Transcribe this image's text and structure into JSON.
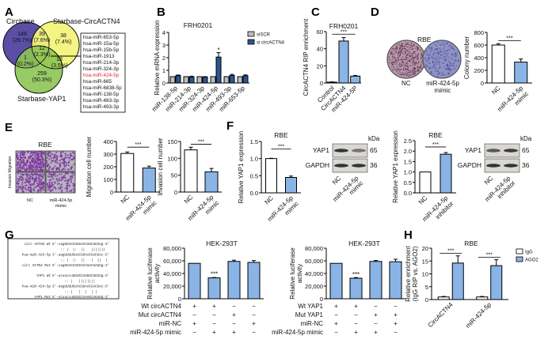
{
  "panels": [
    "A",
    "B",
    "C",
    "D",
    "E",
    "F",
    "G",
    "H"
  ],
  "colors": {
    "purple": "#5b4fa5",
    "yellow": "#f3f37c",
    "green": "#8dc454",
    "blue": "#8ab4e6",
    "navy": "#2b5592",
    "gray": "#bdbdbd",
    "red": "#e8202a"
  },
  "venn": {
    "sets": [
      "Circbase",
      "Starbase-CircACTN4",
      "Starbase-YAP1"
    ],
    "regions": [
      {
        "count": "148",
        "pct": "(28.7%)"
      },
      {
        "count": "39",
        "pct": "(7.6%)"
      },
      {
        "count": "38",
        "pct": "(7.4%)"
      },
      {
        "count": "12",
        "pct": "(2.3%)"
      },
      {
        "count": "1",
        "pct": "(0.2%)"
      },
      {
        "count": "18",
        "pct": "(3.5%)"
      },
      {
        "count": "259",
        "pct": "(50.3%)"
      }
    ],
    "mirna_list": [
      "hsa-miR-653-5p",
      "hsa-miR-15a-5p",
      "hsa-miR-15b-5p",
      "hsa-miR-1913",
      "hsa-miR-214-3p",
      "hsa-miR-324-3p",
      "hsa-miR-424-5p",
      "hsa-miR-665",
      "hsa-miR-6838-5p",
      "hsa-miR-138-5p",
      "hsa-miR-483-3p",
      "hsa-miR-493-3p"
    ],
    "highlight_index": 6
  },
  "colony": {
    "title": "RBE",
    "labels": [
      "NC",
      "miR-424-5p",
      "mimic"
    ]
  },
  "transwell": {
    "title": "RBE",
    "row_label": "Invasion Migration",
    "labels": [
      "NC",
      "miR-424-5p",
      "mimic"
    ]
  },
  "western": [
    {
      "rows": [
        "YAP1",
        "GAPDH"
      ],
      "kda_label": "kDa",
      "kda": [
        "65",
        "36"
      ],
      "lanes": [
        [
          "NC"
        ],
        [
          "miR-424-5p",
          "mimic"
        ]
      ]
    },
    {
      "rows": [
        "YAP1",
        "GAPDH"
      ],
      "kda_label": "kDa",
      "kda": [
        "65",
        "36"
      ],
      "lanes": [
        [
          "NC"
        ],
        [
          "miR-424-5p",
          "inhibitor"
        ]
      ]
    }
  ],
  "sequences": [
    {
      "label": "circ ACTN4 Wt",
      "seq": "5'-cagGGACCGGGACCUGCUGCUg-3'"
    },
    {
      "label": "",
      "seq": "    :: |  |:  ||   |||||||"
    },
    {
      "label": "hsa-miR-424-5p",
      "seq": "3'-aagUUUUGUACUUAACGACGAc-5'"
    },
    {
      "label": "",
      "seq": "    :: |  |:  ||   |  ||  |"
    },
    {
      "label": "circ ACTN4 Mut",
      "seq": "5'-cagGGACCGGGACCUACUAUUg-3'"
    },
    {
      "label": "YAP1 Wt",
      "seq": "5'-ucuuccuUGUCCAUUGCUGCUg-3'"
    },
    {
      "label": "",
      "seq": "      :: |   ||||||||"
    },
    {
      "label": "hsa-miR-424-5p",
      "seq": "3'-aagUUUUGUACUUAACGACGAc-5'"
    },
    {
      "label": "",
      "seq": "      :: |   |  |  | |"
    },
    {
      "label": "YAP1 Mut",
      "seq": "5'-ucuuccuUGUCCAAAGCAGAUg-3'"
    }
  ],
  "chart_data": {
    "B": {
      "type": "bar",
      "title": "FRH0201",
      "ylabel": [
        "Relative mRNA expression"
      ],
      "ylim": [
        0,
        4
      ],
      "yticks": [
        "0",
        "1",
        "2",
        "3",
        "4"
      ],
      "categories": [
        [
          "miR-138-5p"
        ],
        [
          "miR-214-3p"
        ],
        [
          "miR-324-3p"
        ],
        [
          "miR-424-5p"
        ],
        [
          "miR-493-3p"
        ],
        [
          "miR-653-5p"
        ]
      ],
      "series": [
        {
          "name": "siSCR",
          "color": "#bdbdbd",
          "values": [
            0.5,
            0.5,
            0.5,
            0.5,
            0.5,
            0.5
          ],
          "errors": [
            0,
            0,
            0,
            0,
            0,
            0
          ]
        },
        {
          "name": "si circACTN4",
          "color": "#2b5592",
          "values": [
            0.58,
            0.48,
            0.47,
            2.05,
            0.6,
            0.57
          ],
          "errors": [
            0.05,
            0.06,
            0.03,
            0.35,
            0.08,
            0.07
          ]
        }
      ],
      "significance": [
        {
          "over": [
            3,
            1
          ],
          "text": "*",
          "y": 2.55
        }
      ],
      "legend": "top-right"
    },
    "C": {
      "type": "bar",
      "title": "FRH0201",
      "ylabel": [
        "CircACTN4 RIP enrichment"
      ],
      "ylim": [
        0,
        60
      ],
      "yticks": [
        "0",
        "20",
        "40",
        "60"
      ],
      "categories": [
        [
          "Control"
        ],
        [
          "CircACTN4"
        ],
        [
          "miR-424-5P"
        ]
      ],
      "series": [
        {
          "colors": [
            "#bdbdbd",
            "#8ab4e6",
            "#8ab4e6"
          ],
          "values": [
            1,
            49,
            8
          ],
          "errors": [
            0.3,
            4,
            0.8
          ]
        }
      ],
      "significance": [
        {
          "from": 0,
          "to": 2,
          "text": "***",
          "y": 57
        }
      ]
    },
    "D": {
      "type": "bar",
      "ylabel": [
        "Colony number"
      ],
      "ylim": [
        0,
        800
      ],
      "yticks": [
        "0",
        "200",
        "400",
        "600",
        "800"
      ],
      "categories": [
        [
          "NC"
        ],
        [
          "miR-424-5p",
          "mimic"
        ]
      ],
      "series": [
        {
          "colors": [
            "#ffffff",
            "#8ab4e6"
          ],
          "values": [
            600,
            330
          ],
          "errors": [
            20,
            50
          ]
        }
      ],
      "significance": [
        {
          "from": 0,
          "to": 1,
          "text": "***",
          "y": 670
        }
      ]
    },
    "E1": {
      "type": "bar",
      "ylabel": [
        "Migration cell number"
      ],
      "ylim": [
        0,
        400
      ],
      "yticks": [
        "0",
        "100",
        "200",
        "300",
        "400"
      ],
      "categories": [
        [
          "NC"
        ],
        [
          "miR-424-5p",
          "mimic"
        ]
      ],
      "series": [
        {
          "colors": [
            "#ffffff",
            "#8ab4e6"
          ],
          "values": [
            305,
            190
          ],
          "errors": [
            12,
            15
          ]
        }
      ],
      "significance": [
        {
          "from": 0,
          "to": 1,
          "text": "***",
          "y": 355
        }
      ]
    },
    "E2": {
      "type": "bar",
      "ylabel": [
        "Invasion cell number"
      ],
      "ylim": [
        0,
        150
      ],
      "yticks": [
        "0",
        "50",
        "100",
        "150"
      ],
      "categories": [
        [
          "NC"
        ],
        [
          "miR-424-5p",
          "mimic"
        ]
      ],
      "series": [
        {
          "colors": [
            "#ffffff",
            "#8ab4e6"
          ],
          "values": [
            125,
            60
          ],
          "errors": [
            8,
            10
          ]
        }
      ],
      "significance": [
        {
          "from": 0,
          "to": 1,
          "text": "***",
          "y": 142
        }
      ]
    },
    "F1": {
      "type": "bar",
      "title": "RBE",
      "ylabel": [
        "Relative YAP1 expression"
      ],
      "ylim": [
        0,
        1.5
      ],
      "yticks": [
        "0.0",
        "0.5",
        "1.0",
        "1.5"
      ],
      "categories": [
        [
          "NC"
        ],
        [
          "miR-424-5p",
          "mimic"
        ]
      ],
      "series": [
        {
          "colors": [
            "#ffffff",
            "#8ab4e6"
          ],
          "values": [
            1.0,
            0.45
          ],
          "errors": [
            0.01,
            0.04
          ]
        }
      ],
      "significance": [
        {
          "from": 0,
          "to": 1,
          "text": "***",
          "y": 1.28
        }
      ]
    },
    "F2": {
      "type": "bar",
      "title": "RBE",
      "ylabel": [
        "Relative YAP1 expression"
      ],
      "ylim": [
        0,
        2.5
      ],
      "yticks": [
        "0.0",
        "0.5",
        "1.0",
        "1.5",
        "2.0",
        "2.5"
      ],
      "categories": [
        [
          "NC"
        ],
        [
          "miR-424-5p",
          "inhibitor"
        ]
      ],
      "series": [
        {
          "colors": [
            "#ffffff",
            "#8ab4e6"
          ],
          "values": [
            1.0,
            1.85
          ],
          "errors": [
            0,
            0.08
          ]
        }
      ],
      "significance": [
        {
          "from": 0,
          "to": 1,
          "text": "***",
          "y": 2.2
        }
      ]
    },
    "G1": {
      "type": "bar",
      "title": "HEK-293T",
      "ylabel": [
        "Relative luciferase",
        "activity"
      ],
      "ylim": [
        0,
        80000
      ],
      "yticks": [
        "0",
        "20,000",
        "40,000",
        "60,000",
        "80,000"
      ],
      "categories": [
        [
          ""
        ],
        [
          ""
        ],
        [
          ""
        ],
        [
          ""
        ]
      ],
      "series": [
        {
          "colors": [
            "#8ab4e6",
            "#8ab4e6",
            "#8ab4e6",
            "#8ab4e6"
          ],
          "values": [
            56000,
            33000,
            59000,
            57500
          ],
          "errors": [
            0,
            600,
            2000,
            3000
          ]
        }
      ],
      "significance": [
        {
          "over": [
            1,
            0
          ],
          "text": "***",
          "y": 38000
        }
      ],
      "conditions": [
        {
          "label": "Wt circACTN4",
          "values": [
            "+",
            "+",
            "−",
            "−"
          ]
        },
        {
          "label": "Mut circACTN4",
          "values": [
            "−",
            "−",
            "+",
            "−"
          ]
        },
        {
          "label": "miR-NC",
          "values": [
            "+",
            "−",
            "−",
            "+"
          ]
        },
        {
          "label": "miR-424-5p mimic",
          "values": [
            "−",
            "+",
            "+",
            "−"
          ]
        }
      ]
    },
    "G2": {
      "type": "bar",
      "title": "HEK-293T",
      "ylabel": [
        "Relative luciferase",
        "activity"
      ],
      "ylim": [
        0,
        80000
      ],
      "yticks": [
        "0",
        "20,000",
        "40,000",
        "60,000",
        "80,000"
      ],
      "categories": [
        [
          ""
        ],
        [
          ""
        ],
        [
          ""
        ],
        [
          ""
        ]
      ],
      "series": [
        {
          "colors": [
            "#8ab4e6",
            "#8ab4e6",
            "#8ab4e6",
            "#8ab4e6"
          ],
          "values": [
            56000,
            32500,
            59000,
            58500
          ],
          "errors": [
            0,
            1000,
            1500,
            4000
          ]
        }
      ],
      "significance": [
        {
          "over": [
            1,
            0
          ],
          "text": "***",
          "y": 37500
        }
      ],
      "conditions": [
        {
          "label": "Wt YAP1",
          "values": [
            "+",
            "+",
            "−",
            "−"
          ]
        },
        {
          "label": "Mut YAP1",
          "values": [
            "−",
            "−",
            "+",
            "+"
          ]
        },
        {
          "label": "miR-NC",
          "values": [
            "+",
            "−",
            "−",
            "+"
          ]
        },
        {
          "label": "miR-424-5p mimic",
          "values": [
            "−",
            "+",
            "+",
            "−"
          ]
        }
      ]
    },
    "H": {
      "type": "bar",
      "title": "RBE",
      "ylabel": [
        "Relative enrichment",
        "(IgG RIP vs. AGO2)"
      ],
      "ylim": [
        0,
        20
      ],
      "yticks": [
        "0",
        "5",
        "10",
        "15",
        "20"
      ],
      "categories": [
        [
          "CircACTN4"
        ],
        [
          "miR-424-5p"
        ]
      ],
      "series": [
        {
          "name": "IgG",
          "color": "#ffffff",
          "values": [
            1,
            1
          ],
          "errors": [
            0.2,
            0.2
          ]
        },
        {
          "name": "AGO2",
          "color": "#8ab4e6",
          "values": [
            14.2,
            13.2
          ],
          "errors": [
            2.8,
            2.3
          ]
        }
      ],
      "significance": [
        {
          "group": 0,
          "text": "***",
          "y": 18
        },
        {
          "group": 1,
          "text": "***",
          "y": 16.5
        }
      ],
      "legend": "top-right"
    }
  }
}
